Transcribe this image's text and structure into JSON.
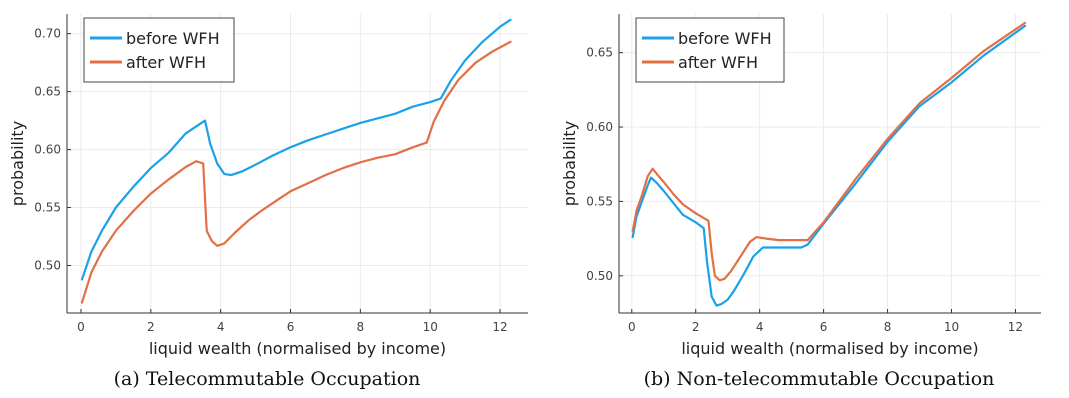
{
  "chart_data": [
    {
      "type": "line",
      "title": "",
      "caption": "(a) Telecommutable Occupation",
      "xlabel": "liquid wealth (normalised by income)",
      "ylabel": "probability",
      "xlim": [
        -0.4,
        12.8
      ],
      "ylim": [
        0.459,
        0.717
      ],
      "xticks": [
        0,
        2,
        4,
        6,
        8,
        10,
        12
      ],
      "yticks": [
        0.5,
        0.55,
        0.6,
        0.65,
        0.7
      ],
      "ytick_labels": [
        "0.50",
        "0.55",
        "0.60",
        "0.65",
        "0.70"
      ],
      "grid": true,
      "legend": "top-left",
      "series": [
        {
          "name": "before WFH",
          "color": "#1ba1ea",
          "x": [
            0.03,
            0.3,
            0.6,
            1.0,
            1.5,
            2.0,
            2.5,
            3.0,
            3.3,
            3.55,
            3.7,
            3.9,
            4.1,
            4.3,
            4.6,
            5.0,
            5.5,
            6.0,
            6.5,
            7.0,
            7.5,
            8.0,
            8.5,
            9.0,
            9.5,
            10.0,
            10.3,
            10.6,
            11.0,
            11.5,
            12.0,
            12.3
          ],
          "y": [
            0.488,
            0.512,
            0.53,
            0.55,
            0.568,
            0.584,
            0.597,
            0.614,
            0.62,
            0.625,
            0.605,
            0.588,
            0.579,
            0.578,
            0.581,
            0.587,
            0.595,
            0.602,
            0.608,
            0.613,
            0.618,
            0.623,
            0.627,
            0.631,
            0.637,
            0.641,
            0.644,
            0.66,
            0.677,
            0.693,
            0.706,
            0.712
          ]
        },
        {
          "name": "after WFH",
          "color": "#e26f46",
          "x": [
            0.03,
            0.3,
            0.6,
            1.0,
            1.5,
            2.0,
            2.5,
            3.0,
            3.3,
            3.5,
            3.6,
            3.75,
            3.9,
            4.1,
            4.4,
            4.8,
            5.2,
            5.6,
            6.0,
            6.5,
            7.0,
            7.5,
            8.0,
            8.5,
            9.0,
            9.5,
            9.9,
            10.1,
            10.4,
            10.8,
            11.3,
            11.8,
            12.3
          ],
          "y": [
            0.468,
            0.494,
            0.512,
            0.53,
            0.547,
            0.562,
            0.574,
            0.585,
            0.59,
            0.588,
            0.53,
            0.521,
            0.517,
            0.519,
            0.528,
            0.539,
            0.548,
            0.556,
            0.564,
            0.571,
            0.578,
            0.584,
            0.589,
            0.593,
            0.596,
            0.602,
            0.606,
            0.624,
            0.642,
            0.66,
            0.675,
            0.685,
            0.693
          ]
        }
      ]
    },
    {
      "type": "line",
      "title": "",
      "caption": "(b) Non-telecommutable Occupation",
      "xlabel": "liquid wealth (normalised by income)",
      "ylabel": "probability",
      "xlim": [
        -0.4,
        12.8
      ],
      "ylim": [
        0.475,
        0.676
      ],
      "xticks": [
        0,
        2,
        4,
        6,
        8,
        10,
        12
      ],
      "yticks": [
        0.5,
        0.55,
        0.6,
        0.65
      ],
      "ytick_labels": [
        "0.50",
        "0.55",
        "0.60",
        "0.65"
      ],
      "grid": true,
      "legend": "top-left",
      "series": [
        {
          "name": "before WFH",
          "color": "#1ba1ea",
          "x": [
            0.03,
            0.15,
            0.3,
            0.5,
            0.6,
            0.8,
            1.0,
            1.3,
            1.6,
            2.0,
            2.25,
            2.35,
            2.5,
            2.65,
            2.8,
            3.0,
            3.2,
            3.5,
            3.8,
            4.1,
            4.5,
            5.0,
            5.3,
            5.5,
            6.0,
            7.0,
            8.0,
            9.0,
            10.0,
            11.0,
            12.3
          ],
          "y": [
            0.526,
            0.54,
            0.549,
            0.561,
            0.566,
            0.562,
            0.557,
            0.549,
            0.541,
            0.536,
            0.532,
            0.51,
            0.486,
            0.48,
            0.481,
            0.484,
            0.49,
            0.501,
            0.513,
            0.519,
            0.519,
            0.519,
            0.519,
            0.521,
            0.535,
            0.562,
            0.59,
            0.614,
            0.63,
            0.648,
            0.668
          ]
        },
        {
          "name": "after WFH",
          "color": "#e26f46",
          "x": [
            0.03,
            0.15,
            0.3,
            0.5,
            0.65,
            0.8,
            1.0,
            1.3,
            1.6,
            2.0,
            2.4,
            2.5,
            2.6,
            2.75,
            2.9,
            3.1,
            3.4,
            3.7,
            3.9,
            4.2,
            4.6,
            5.0,
            5.5,
            6.0,
            7.0,
            8.0,
            9.0,
            10.0,
            11.0,
            12.3
          ],
          "y": [
            0.53,
            0.544,
            0.553,
            0.567,
            0.572,
            0.568,
            0.563,
            0.555,
            0.548,
            0.542,
            0.537,
            0.515,
            0.5,
            0.497,
            0.498,
            0.503,
            0.513,
            0.523,
            0.526,
            0.525,
            0.524,
            0.524,
            0.524,
            0.536,
            0.565,
            0.592,
            0.616,
            0.633,
            0.651,
            0.67
          ]
        }
      ]
    }
  ]
}
